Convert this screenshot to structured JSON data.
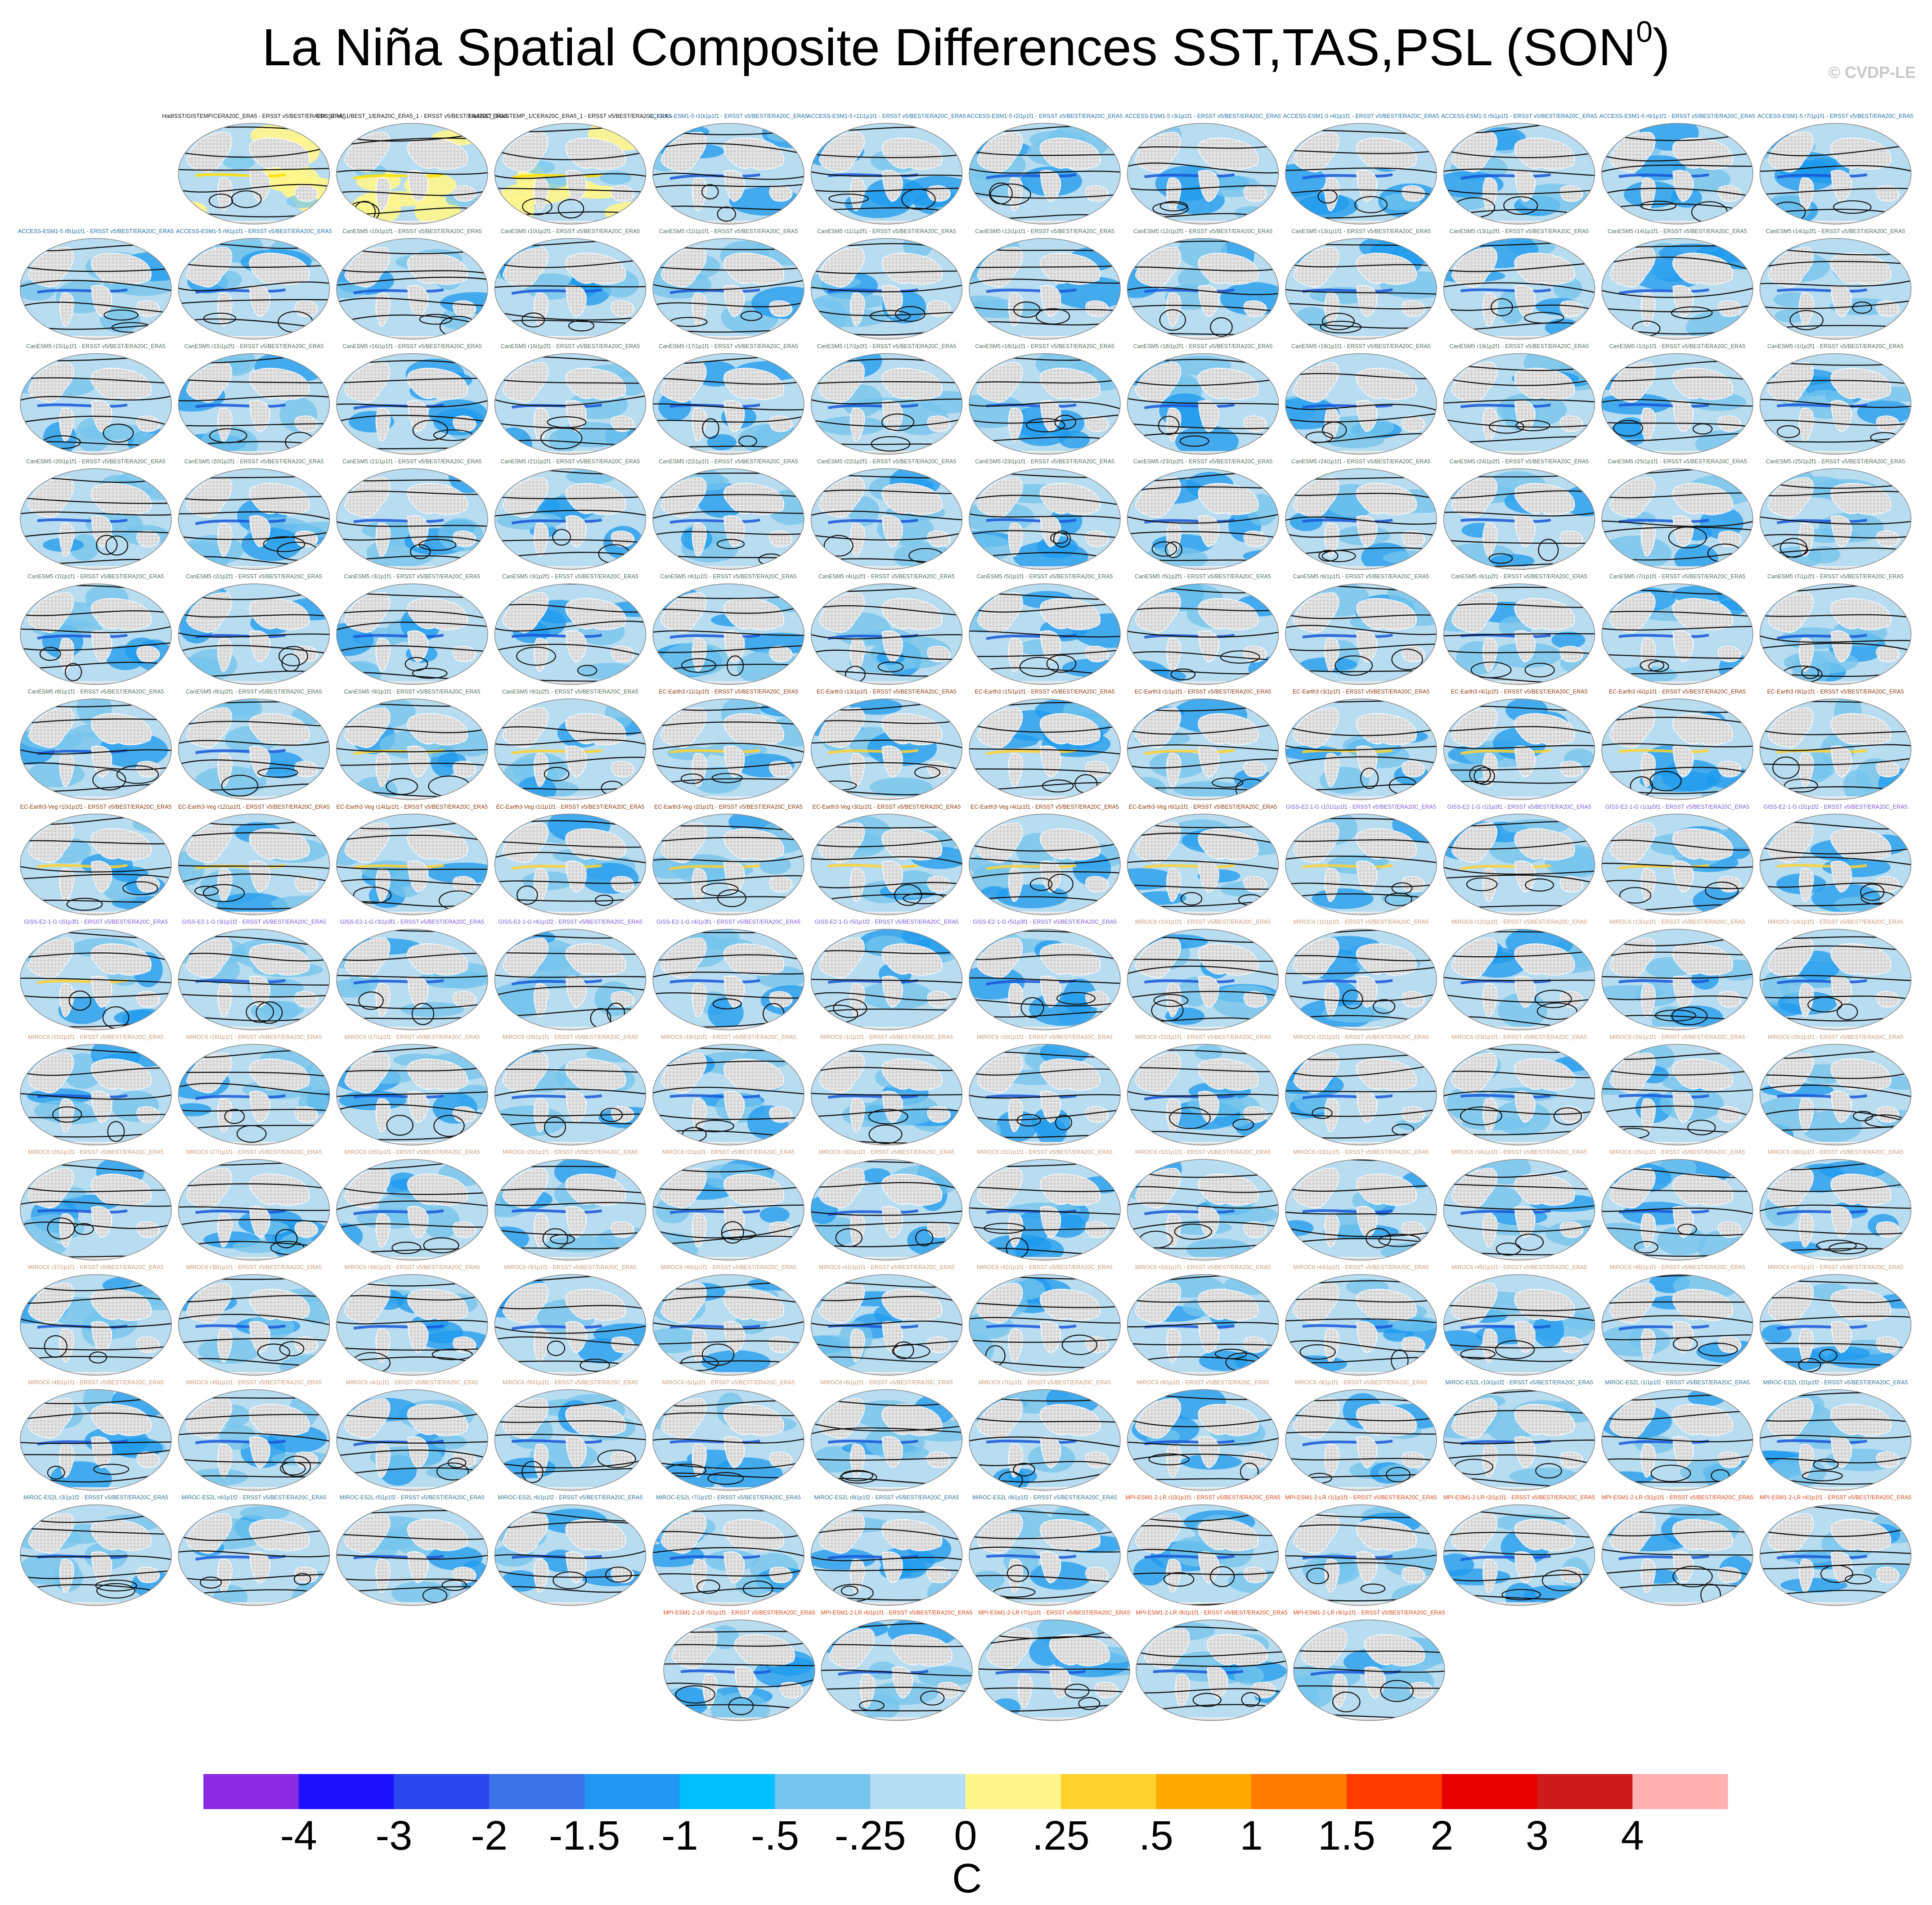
{
  "title": "La Niña Spatial Composite Differences SST,TAS,PSL (SON",
  "title_superscript": "0",
  "title_closing": ")",
  "credit": "© CVDP-LE",
  "colors": {
    "land": "#dcdcdc",
    "ocean_light": "#b8dcf0",
    "ocean_mid": "#74c4ec",
    "ocean_dark": "#1e9aee",
    "contour": "#111111",
    "warm": "#fff68c"
  },
  "chart_data": {
    "type": "map-panel-grid",
    "title": "La Niña Spatial Composite Differences SST,TAS,PSL (SON0)",
    "variables": [
      "SST",
      "TAS",
      "PSL"
    ],
    "season": "SON0",
    "colorbar": {
      "unit": "C",
      "tick_labels": [
        "-4",
        "-3",
        "-2",
        "-1.5",
        "-1",
        "-.5",
        "-.25",
        "0",
        ".25",
        ".5",
        "1",
        "1.5",
        "2",
        "3",
        "4"
      ],
      "colors": [
        "#8a2be2",
        "#1e12fe",
        "#2b46ea",
        "#3a73e8",
        "#2196f3",
        "#00bfff",
        "#74c4ec",
        "#b4dcf2",
        "#fff68c",
        "#ffd22f",
        "#ffa900",
        "#ff7a00",
        "#ff3b00",
        "#e60000",
        "#cd1b1b",
        "#ffb0b0"
      ]
    },
    "panels": [
      "HadISST/GISTEMP/CERA20C_ERA5 - ERSST v5/BEST/ERA20C_ERA5",
      "ERSST v5_1/BEST_1/ERA20C_ERA5_1 - ERSST v5/BEST/ERA20C_ERA5",
      "HadISST_1/GISTEMP_1/CERA20C_ERA5_1 - ERSST v5/BEST/ERA20C_ERA5",
      "ACCESS-ESM1-5 r10i1p1f1 - ERSST v5/BEST/ERA20C_ERA5",
      "ACCESS-ESM1-5 r11i1p1f1 - ERSST v5/BEST/ERA20C_ERA5",
      "ACCESS-ESM1-5 r2i1p1f1 - ERSST v5/BEST/ERA20C_ERA5",
      "ACCESS-ESM1-5 r3i1p1f1 - ERSST v5/BEST/ERA20C_ERA5",
      "ACCESS-ESM1-5 r4i1p1f1 - ERSST v5/BEST/ERA20C_ERA5",
      "ACCESS-ESM1-5 r5i1p1f1 - ERSST v5/BEST/ERA20C_ERA5",
      "ACCESS-ESM1-5 r6i1p1f1 - ERSST v5/BEST/ERA20C_ERA5",
      "ACCESS-ESM1-5 r7i1p1f1 - ERSST v5/BEST/ERA20C_ERA5",
      "ACCESS-ESM1-5 r8i1p1f1 - ERSST v5/BEST/ERA20C_ERA5",
      "ACCESS-ESM1-5 r9i1p1f1 - ERSST v5/BEST/ERA20C_ERA5",
      "CanESM5 r10i1p1f1 - ERSST v5/BEST/ERA20C_ERA5",
      "CanESM5 r10i1p2f1 - ERSST v5/BEST/ERA20C_ERA5",
      "CanESM5 r11i1p1f1 - ERSST v5/BEST/ERA20C_ERA5",
      "CanESM5 r11i1p2f1 - ERSST v5/BEST/ERA20C_ERA5",
      "CanESM5 r12i1p1f1 - ERSST v5/BEST/ERA20C_ERA5",
      "CanESM5 r12i1p2f1 - ERSST v5/BEST/ERA20C_ERA5",
      "CanESM5 r13i1p1f1 - ERSST v5/BEST/ERA20C_ERA5",
      "CanESM5 r13i1p2f1 - ERSST v5/BEST/ERA20C_ERA5",
      "CanESM5 r14i1p1f1 - ERSST v5/BEST/ERA20C_ERA5",
      "CanESM5 r14i1p2f1 - ERSST v5/BEST/ERA20C_ERA5",
      "CanESM5 r15i1p1f1 - ERSST v5/BEST/ERA20C_ERA5",
      "CanESM5 r15i1p2f1 - ERSST v5/BEST/ERA20C_ERA5",
      "CanESM5 r16i1p1f1 - ERSST v5/BEST/ERA20C_ERA5",
      "CanESM5 r16i1p2f1 - ERSST v5/BEST/ERA20C_ERA5",
      "CanESM5 r17i1p1f1 - ERSST v5/BEST/ERA20C_ERA5",
      "CanESM5 r17i1p2f1 - ERSST v5/BEST/ERA20C_ERA5",
      "CanESM5 r18i1p1f1 - ERSST v5/BEST/ERA20C_ERA5",
      "CanESM5 r18i1p2f1 - ERSST v5/BEST/ERA20C_ERA5",
      "CanESM5 r19i1p1f1 - ERSST v5/BEST/ERA20C_ERA5",
      "CanESM5 r19i1p2f1 - ERSST v5/BEST/ERA20C_ERA5",
      "CanESM5 r1i1p1f1 - ERSST v5/BEST/ERA20C_ERA5",
      "CanESM5 r1i1p2f1 - ERSST v5/BEST/ERA20C_ERA5",
      "CanESM5 r20i1p1f1 - ERSST v5/BEST/ERA20C_ERA5",
      "CanESM5 r20i1p2f1 - ERSST v5/BEST/ERA20C_ERA5",
      "CanESM5 r21i1p1f1 - ERSST v5/BEST/ERA20C_ERA5",
      "CanESM5 r21i1p2f1 - ERSST v5/BEST/ERA20C_ERA5",
      "CanESM5 r22i1p1f1 - ERSST v5/BEST/ERA20C_ERA5",
      "CanESM5 r22i1p2f1 - ERSST v5/BEST/ERA20C_ERA5",
      "CanESM5 r23i1p1f1 - ERSST v5/BEST/ERA20C_ERA5",
      "CanESM5 r23i1p2f1 - ERSST v5/BEST/ERA20C_ERA5",
      "CanESM5 r24i1p1f1 - ERSST v5/BEST/ERA20C_ERA5",
      "CanESM5 r24i1p2f1 - ERSST v5/BEST/ERA20C_ERA5",
      "CanESM5 r25i1p1f1 - ERSST v5/BEST/ERA20C_ERA5",
      "CanESM5 r25i1p2f1 - ERSST v5/BEST/ERA20C_ERA5",
      "CanESM5 r2i1p1f1 - ERSST v5/BEST/ERA20C_ERA5",
      "CanESM5 r2i1p2f1 - ERSST v5/BEST/ERA20C_ERA5",
      "CanESM5 r3i1p1f1 - ERSST v5/BEST/ERA20C_ERA5",
      "CanESM5 r3i1p2f1 - ERSST v5/BEST/ERA20C_ERA5",
      "CanESM5 r4i1p1f1 - ERSST v5/BEST/ERA20C_ERA5",
      "CanESM5 r4i1p2f1 - ERSST v5/BEST/ERA20C_ERA5",
      "CanESM5 r5i1p1f1 - ERSST v5/BEST/ERA20C_ERA5",
      "CanESM5 r5i1p2f1 - ERSST v5/BEST/ERA20C_ERA5",
      "CanESM5 r6i1p1f1 - ERSST v5/BEST/ERA20C_ERA5",
      "CanESM5 r6i1p2f1 - ERSST v5/BEST/ERA20C_ERA5",
      "CanESM5 r7i1p1f1 - ERSST v5/BEST/ERA20C_ERA5",
      "CanESM5 r7i1p2f1 - ERSST v5/BEST/ERA20C_ERA5",
      "CanESM5 r8i1p1f1 - ERSST v5/BEST/ERA20C_ERA5",
      "CanESM5 r8i1p2f1 - ERSST v5/BEST/ERA20C_ERA5",
      "CanESM5 r9i1p1f1 - ERSST v5/BEST/ERA20C_ERA5",
      "CanESM5 r9i1p2f1 - ERSST v5/BEST/ERA20C_ERA5",
      "EC-Earth3 r11i1p1f1 - ERSST v5/BEST/ERA20C_ERA5",
      "EC-Earth3 r13i1p1f1 - ERSST v5/BEST/ERA20C_ERA5",
      "EC-Earth3 r15i1p1f1 - ERSST v5/BEST/ERA20C_ERA5",
      "EC-Earth3 r1i1p1f1 - ERSST v5/BEST/ERA20C_ERA5",
      "EC-Earth3 r3i1p1f1 - ERSST v5/BEST/ERA20C_ERA5",
      "EC-Earth3 r4i1p1f1 - ERSST v5/BEST/ERA20C_ERA5",
      "EC-Earth3 r6i1p1f1 - ERSST v5/BEST/ERA20C_ERA5",
      "EC-Earth3 r9i1p1f1 - ERSST v5/BEST/ERA20C_ERA5",
      "EC-Earth3-Veg r10i1p1f1 - ERSST v5/BEST/ERA20C_ERA5",
      "EC-Earth3-Veg r12i1p1f1 - ERSST v5/BEST/ERA20C_ERA5",
      "EC-Earth3-Veg r14i1p1f1 - ERSST v5/BEST/ERA20C_ERA5",
      "EC-Earth3-Veg r1i1p1f1 - ERSST v5/BEST/ERA20C_ERA5",
      "EC-Earth3-Veg r2i1p1f1 - ERSST v5/BEST/ERA20C_ERA5",
      "EC-Earth3-Veg r3i1p1f1 - ERSST v5/BEST/ERA20C_ERA5",
      "EC-Earth3-Veg r4i1p1f1 - ERSST v5/BEST/ERA20C_ERA5",
      "EC-Earth3-Veg r6i1p1f1 - ERSST v5/BEST/ERA20C_ERA5",
      "GISS-E2-1-G r101i1p1f1 - ERSST v5/BEST/ERA20C_ERA5",
      "GISS-E2-1-G r1i1p3f1 - ERSST v5/BEST/ERA20C_ERA5",
      "GISS-E2-1-G r1i1p5f1 - ERSST v5/BEST/ERA20C_ERA5",
      "GISS-E2-1-G r2i1p1f2 - ERSST v5/BEST/ERA20C_ERA5",
      "GISS-E2-1-G r2i1p3f1 - ERSST v5/BEST/ERA20C_ERA5",
      "GISS-E2-1-G r3i1p1f2 - ERSST v5/BEST/ERA20C_ERA5",
      "GISS-E2-1-G r3i1p3f1 - ERSST v5/BEST/ERA20C_ERA5",
      "GISS-E2-1-G r4i1p1f2 - ERSST v5/BEST/ERA20C_ERA5",
      "GISS-E2-1-G r4i1p3f1 - ERSST v5/BEST/ERA20C_ERA5",
      "GISS-E2-1-G r5i1p1f2 - ERSST v5/BEST/ERA20C_ERA5",
      "GISS-E2-1-G r5i1p3f1 - ERSST v5/BEST/ERA20C_ERA5",
      "MIROC6 r10i1p1f1 - ERSST v5/BEST/ERA20C_ERA5",
      "MIROC6 r11i1p1f1 - ERSST v5/BEST/ERA20C_ERA5",
      "MIROC6 r12i1p1f1 - ERSST v5/BEST/ERA20C_ERA5",
      "MIROC6 r13i1p1f1 - ERSST v5/BEST/ERA20C_ERA5",
      "MIROC6 r14i1p1f1 - ERSST v5/BEST/ERA20C_ERA5",
      "MIROC6 r15i1p1f1 - ERSST v5/BEST/ERA20C_ERA5",
      "MIROC6 r16i1p1f1 - ERSST v5/BEST/ERA20C_ERA5",
      "MIROC6 r17i1p1f1 - ERSST v5/BEST/ERA20C_ERA5",
      "MIROC6 r18i1p1f1 - ERSST v5/BEST/ERA20C_ERA5",
      "MIROC6 r19i1p1f1 - ERSST v5/BEST/ERA20C_ERA5",
      "MIROC6 r1i1p1f1 - ERSST v5/BEST/ERA20C_ERA5",
      "MIROC6 r20i1p1f1 - ERSST v5/BEST/ERA20C_ERA5",
      "MIROC6 r21i1p1f1 - ERSST v5/BEST/ERA20C_ERA5",
      "MIROC6 r22i1p1f1 - ERSST v5/BEST/ERA20C_ERA5",
      "MIROC6 r23i1p1f1 - ERSST v5/BEST/ERA20C_ERA5",
      "MIROC6 r24i1p1f1 - ERSST v5/BEST/ERA20C_ERA5",
      "MIROC6 r25i1p1f1 - ERSST v5/BEST/ERA20C_ERA5",
      "MIROC6 r26i1p1f1 - ERSST v5/BEST/ERA20C_ERA5",
      "MIROC6 r27i1p1f1 - ERSST v5/BEST/ERA20C_ERA5",
      "MIROC6 r28i1p1f1 - ERSST v5/BEST/ERA20C_ERA5",
      "MIROC6 r29i1p1f1 - ERSST v5/BEST/ERA20C_ERA5",
      "MIROC6 r2i1p1f1 - ERSST v5/BEST/ERA20C_ERA5",
      "MIROC6 r30i1p1f1 - ERSST v5/BEST/ERA20C_ERA5",
      "MIROC6 r31i1p1f1 - ERSST v5/BEST/ERA20C_ERA5",
      "MIROC6 r32i1p1f1 - ERSST v5/BEST/ERA20C_ERA5",
      "MIROC6 r33i1p1f1 - ERSST v5/BEST/ERA20C_ERA5",
      "MIROC6 r34i1p1f1 - ERSST v5/BEST/ERA20C_ERA5",
      "MIROC6 r35i1p1f1 - ERSST v5/BEST/ERA20C_ERA5",
      "MIROC6 r36i1p1f1 - ERSST v5/BEST/ERA20C_ERA5",
      "MIROC6 r37i1p1f1 - ERSST v5/BEST/ERA20C_ERA5",
      "MIROC6 r38i1p1f1 - ERSST v5/BEST/ERA20C_ERA5",
      "MIROC6 r39i1p1f1 - ERSST v5/BEST/ERA20C_ERA5",
      "MIROC6 r3i1p1f1 - ERSST v5/BEST/ERA20C_ERA5",
      "MIROC6 r40i1p1f1 - ERSST v5/BEST/ERA20C_ERA5",
      "MIROC6 r41i1p1f1 - ERSST v5/BEST/ERA20C_ERA5",
      "MIROC6 r42i1p1f1 - ERSST v5/BEST/ERA20C_ERA5",
      "MIROC6 r43i1p1f1 - ERSST v5/BEST/ERA20C_ERA5",
      "MIROC6 r44i1p1f1 - ERSST v5/BEST/ERA20C_ERA5",
      "MIROC6 r45i1p1f1 - ERSST v5/BEST/ERA20C_ERA5",
      "MIROC6 r46i1p1f1 - ERSST v5/BEST/ERA20C_ERA5",
      "MIROC6 r47i1p1f1 - ERSST v5/BEST/ERA20C_ERA5",
      "MIROC6 r48i1p1f1 - ERSST v5/BEST/ERA20C_ERA5",
      "MIROC6 r49i1p1f1 - ERSST v5/BEST/ERA20C_ERA5",
      "MIROC6 r4i1p1f1 - ERSST v5/BEST/ERA20C_ERA5",
      "MIROC6 r50i1p1f1 - ERSST v5/BEST/ERA20C_ERA5",
      "MIROC6 r5i1p1f1 - ERSST v5/BEST/ERA20C_ERA5",
      "MIROC6 r6i1p1f1 - ERSST v5/BEST/ERA20C_ERA5",
      "MIROC6 r7i1p1f1 - ERSST v5/BEST/ERA20C_ERA5",
      "MIROC6 r8i1p1f1 - ERSST v5/BEST/ERA20C_ERA5",
      "MIROC6 r9i1p1f1 - ERSST v5/BEST/ERA20C_ERA5",
      "MIROC-ES2L r10i1p1f2 - ERSST v5/BEST/ERA20C_ERA5",
      "MIROC-ES2L r1i1p1f2 - ERSST v5/BEST/ERA20C_ERA5",
      "MIROC-ES2L r2i1p1f2 - ERSST v5/BEST/ERA20C_ERA5",
      "MIROC-ES2L r3i1p1f2 - ERSST v5/BEST/ERA20C_ERA5",
      "MIROC-ES2L r4i1p1f2 - ERSST v5/BEST/ERA20C_ERA5",
      "MIROC-ES2L r5i1p1f2 - ERSST v5/BEST/ERA20C_ERA5",
      "MIROC-ES2L r6i1p1f2 - ERSST v5/BEST/ERA20C_ERA5",
      "MIROC-ES2L r7i1p1f2 - ERSST v5/BEST/ERA20C_ERA5",
      "MIROC-ES2L r8i1p1f2 - ERSST v5/BEST/ERA20C_ERA5",
      "MIROC-ES2L r9i1p1f2 - ERSST v5/BEST/ERA20C_ERA5",
      "MPI-ESM1-2-LR r10i1p1f1 - ERSST v5/BEST/ERA20C_ERA5",
      "MPI-ESM1-2-LR r1i1p1f1 - ERSST v5/BEST/ERA20C_ERA5",
      "MPI-ESM1-2-LR r2i1p1f1 - ERSST v5/BEST/ERA20C_ERA5",
      "MPI-ESM1-2-LR r3i1p1f1 - ERSST v5/BEST/ERA20C_ERA5",
      "MPI-ESM1-2-LR r4i1p1f1 - ERSST v5/BEST/ERA20C_ERA5",
      "MPI-ESM1-2-LR r5i1p1f1 - ERSST v5/BEST/ERA20C_ERA5",
      "MPI-ESM1-2-LR r6i1p1f1 - ERSST v5/BEST/ERA20C_ERA5",
      "MPI-ESM1-2-LR r7i1p1f1 - ERSST v5/BEST/ERA20C_ERA5",
      "MPI-ESM1-2-LR r8i1p1f1 - ERSST v5/BEST/ERA20C_ERA5",
      "MPI-ESM1-2-LR r9i1p1f1 - ERSST v5/BEST/ERA20C_ERA5"
    ]
  }
}
